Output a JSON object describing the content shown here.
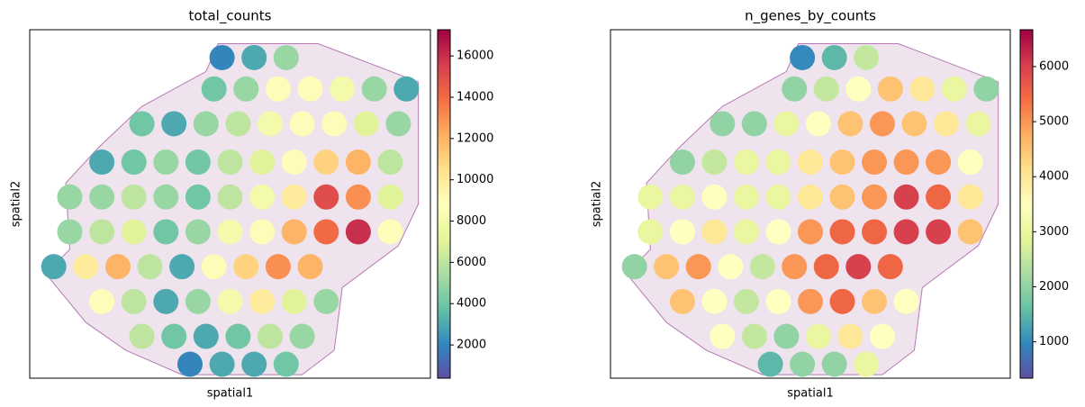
{
  "chart_data": [
    {
      "type": "scatter",
      "title": "total_counts",
      "xlabel": "spatial1",
      "ylabel": "spatial2",
      "xlim": [
        0,
        100
      ],
      "ylim": [
        100,
        0
      ],
      "x": [
        48,
        56,
        64,
        46,
        54,
        62,
        70,
        78,
        86,
        94,
        28,
        36,
        44,
        52,
        60,
        68,
        76,
        84,
        92,
        18,
        26,
        34,
        42,
        50,
        58,
        66,
        74,
        82,
        90,
        10,
        18,
        26,
        34,
        42,
        50,
        58,
        66,
        74,
        82,
        90,
        10,
        18,
        26,
        34,
        42,
        50,
        58,
        66,
        74,
        82,
        90,
        6,
        14,
        22,
        30,
        38,
        46,
        54,
        62,
        70,
        18,
        26,
        34,
        42,
        50,
        58,
        66,
        74,
        28,
        36,
        44,
        52,
        60,
        68,
        40,
        48,
        56,
        64
      ],
      "y": [
        8,
        8,
        8,
        17,
        17,
        17,
        17,
        17,
        17,
        17,
        27,
        27,
        27,
        27,
        27,
        27,
        27,
        27,
        27,
        38,
        38,
        38,
        38,
        38,
        38,
        38,
        38,
        38,
        38,
        48,
        48,
        48,
        48,
        48,
        48,
        48,
        48,
        48,
        48,
        48,
        58,
        58,
        58,
        58,
        58,
        58,
        58,
        58,
        58,
        58,
        58,
        68,
        68,
        68,
        68,
        68,
        68,
        68,
        68,
        68,
        78,
        78,
        78,
        78,
        78,
        78,
        78,
        78,
        88,
        88,
        88,
        88,
        88,
        88,
        96,
        96,
        96,
        96
      ],
      "values": [
        2000,
        3000,
        5000,
        4000,
        5000,
        9000,
        9000,
        8000,
        5000,
        3000,
        4000,
        3000,
        5000,
        6000,
        8000,
        9000,
        9000,
        7000,
        5000,
        3000,
        4000,
        5000,
        4000,
        6000,
        7000,
        9000,
        11000,
        12000,
        6000,
        5000,
        5000,
        6000,
        5000,
        4000,
        6000,
        8000,
        10000,
        15000,
        13000,
        7000,
        5000,
        6000,
        7000,
        4000,
        5000,
        8000,
        9000,
        12000,
        14000,
        16000,
        9000,
        3000,
        10000,
        12000,
        6000,
        3000,
        9000,
        11000,
        13000,
        12000,
        9000,
        6000,
        3000,
        5000,
        8000,
        10000,
        7000,
        5000,
        6000,
        4000,
        3000,
        4000,
        6000,
        5000,
        2000,
        3000,
        3000,
        4000
      ],
      "clim": [
        390,
        17270
      ],
      "cticks": [
        2000,
        4000,
        6000,
        8000,
        10000,
        12000,
        14000,
        16000
      ],
      "colormap": [
        "#5e4fa2",
        "#3288bd",
        "#66c2a5",
        "#abdda4",
        "#e6f598",
        "#ffffbf",
        "#fee08b",
        "#fdae61",
        "#f46d43",
        "#d53e4f",
        "#9e0142"
      ]
    },
    {
      "type": "scatter",
      "title": "n_genes_by_counts",
      "xlabel": "spatial1",
      "ylabel": "spatial2",
      "xlim": [
        0,
        100
      ],
      "ylim": [
        100,
        0
      ],
      "x": [
        48,
        56,
        64,
        46,
        54,
        62,
        70,
        78,
        86,
        94,
        28,
        36,
        44,
        52,
        60,
        68,
        76,
        84,
        92,
        18,
        26,
        34,
        42,
        50,
        58,
        66,
        74,
        82,
        90,
        10,
        18,
        26,
        34,
        42,
        50,
        58,
        66,
        74,
        82,
        90,
        10,
        18,
        26,
        34,
        42,
        50,
        58,
        66,
        74,
        82,
        90,
        6,
        14,
        22,
        30,
        38,
        46,
        54,
        62,
        70,
        18,
        26,
        34,
        42,
        50,
        58,
        66,
        74,
        28,
        36,
        44,
        52,
        60,
        68,
        40,
        48,
        56,
        64
      ],
      "y": [
        8,
        8,
        8,
        17,
        17,
        17,
        17,
        17,
        17,
        17,
        27,
        27,
        27,
        27,
        27,
        27,
        27,
        27,
        27,
        38,
        38,
        38,
        38,
        38,
        38,
        38,
        38,
        38,
        38,
        48,
        48,
        48,
        48,
        48,
        48,
        48,
        48,
        48,
        48,
        48,
        58,
        58,
        58,
        58,
        58,
        58,
        58,
        58,
        58,
        58,
        58,
        68,
        68,
        68,
        68,
        68,
        68,
        68,
        68,
        68,
        78,
        78,
        78,
        78,
        78,
        78,
        78,
        78,
        88,
        88,
        88,
        88,
        88,
        88,
        96,
        96,
        96,
        96
      ],
      "values": [
        1000,
        1500,
        2500,
        2000,
        2500,
        3500,
        4500,
        4000,
        3000,
        2000,
        2000,
        2000,
        3000,
        3500,
        4500,
        5000,
        4500,
        4000,
        3000,
        2000,
        2500,
        3000,
        3000,
        4000,
        4500,
        5000,
        5000,
        5000,
        3500,
        3000,
        3000,
        3500,
        3000,
        3000,
        4000,
        4500,
        5000,
        6000,
        5500,
        4000,
        3000,
        3500,
        4000,
        3000,
        3500,
        5000,
        5500,
        5500,
        6000,
        6000,
        4500,
        2000,
        4500,
        5000,
        3500,
        2500,
        5000,
        5500,
        6000,
        5500,
        4500,
        3500,
        2500,
        3500,
        5000,
        5500,
        4500,
        3500,
        3500,
        2500,
        2000,
        3000,
        4000,
        3500,
        1500,
        2000,
        2000,
        3000
      ],
      "clim": [
        340,
        6670
      ],
      "cticks": [
        1000,
        2000,
        3000,
        4000,
        5000,
        6000
      ],
      "colormap": [
        "#5e4fa2",
        "#3288bd",
        "#66c2a5",
        "#abdda4",
        "#e6f598",
        "#ffffbf",
        "#fee08b",
        "#fdae61",
        "#f46d43",
        "#d53e4f",
        "#9e0142"
      ]
    }
  ]
}
